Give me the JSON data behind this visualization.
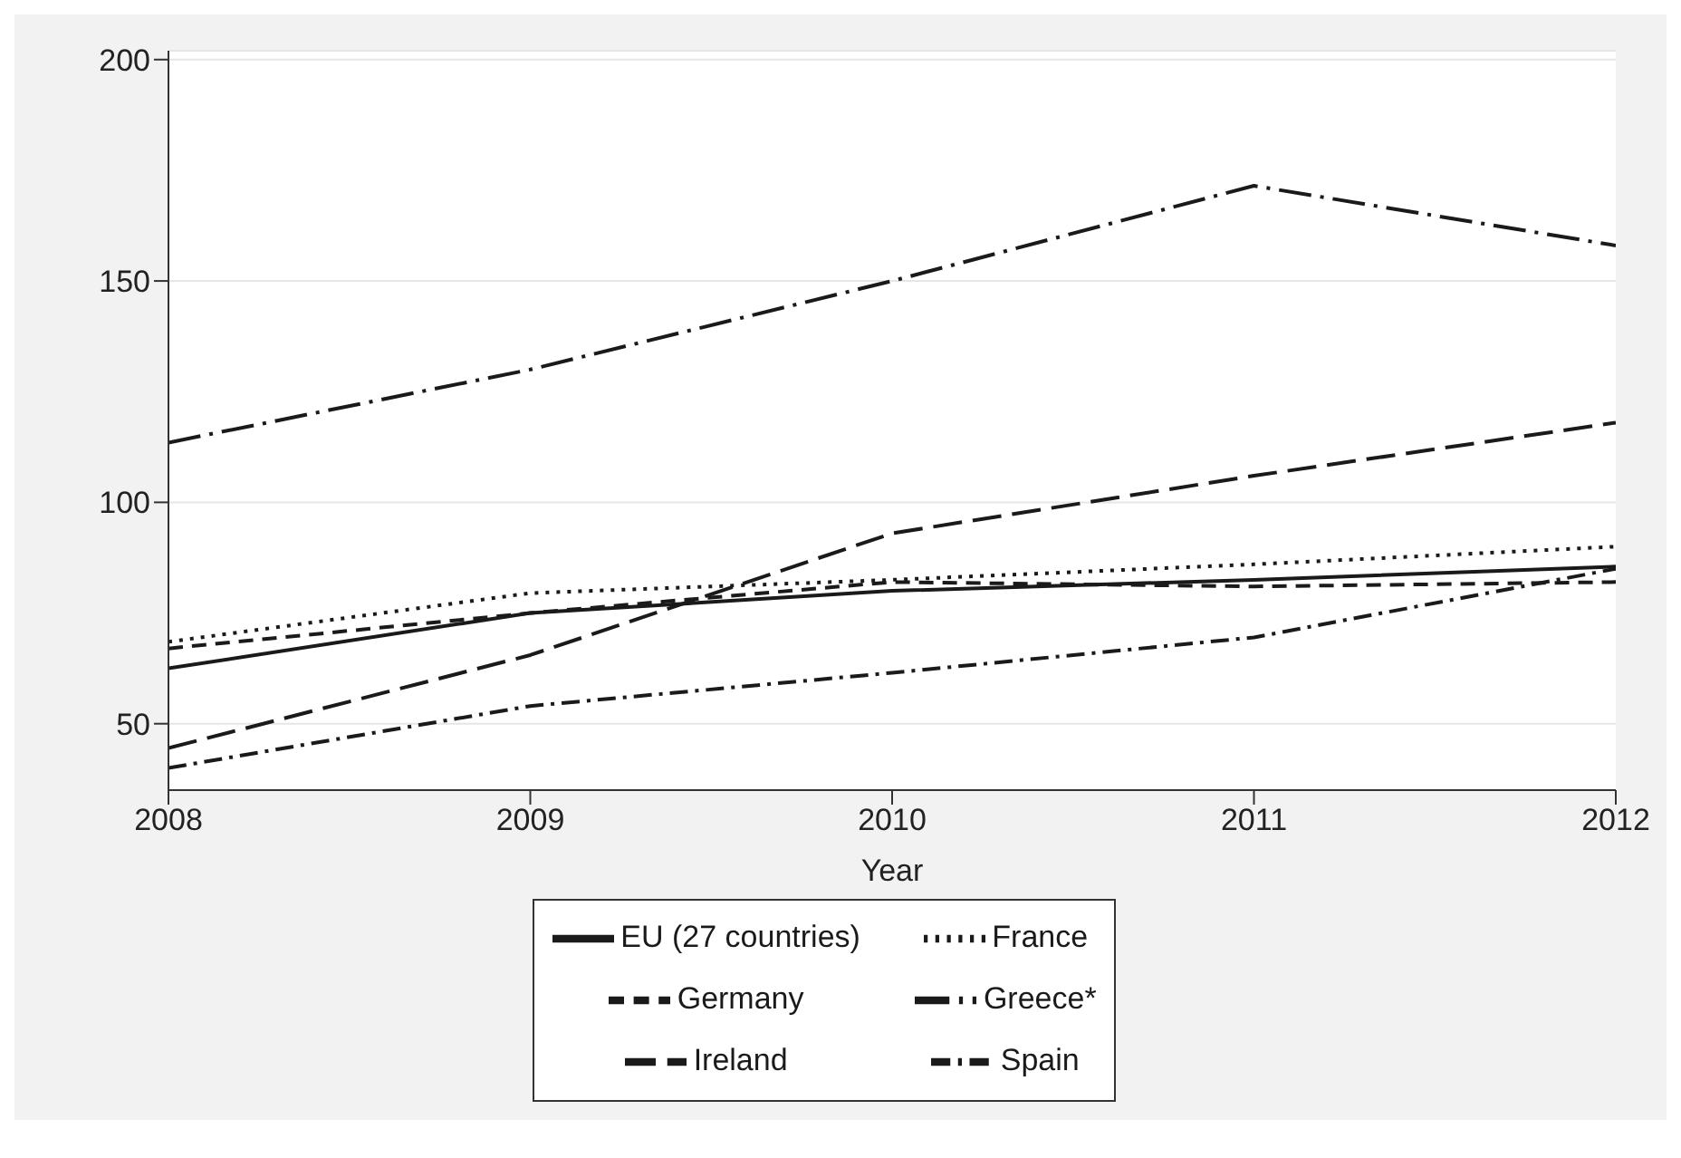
{
  "chart_data": {
    "type": "line",
    "xlabel": "Year",
    "x": [
      2008,
      2009,
      2010,
      2011,
      2012
    ],
    "xlim": [
      2008,
      2012
    ],
    "xticks": [
      2008,
      2009,
      2010,
      2011,
      2012
    ],
    "ylim": [
      35,
      202
    ],
    "yticks": [
      50,
      100,
      150,
      200
    ],
    "grid": "y",
    "legend": "bottom",
    "marker": "none",
    "series": [
      {
        "name": "EU (27 countries)",
        "color": "#1a1a1a",
        "line_style": "solid",
        "values": [
          62.5,
          75,
          80,
          82.5,
          85.5
        ]
      },
      {
        "name": "Germany",
        "color": "#1a1a1a",
        "line_style": "dashed",
        "values": [
          67,
          75,
          82,
          81,
          82
        ]
      },
      {
        "name": "France",
        "color": "#1a1a1a",
        "line_style": "dotted",
        "values": [
          68.5,
          79.5,
          82.5,
          86,
          90
        ]
      },
      {
        "name": "Greece*",
        "color": "#1a1a1a",
        "line_style": "longdashdot",
        "values": [
          113.5,
          130,
          150,
          171.5,
          158
        ]
      },
      {
        "name": "Ireland",
        "color": "#1a1a1a",
        "line_style": "longdash",
        "values": [
          44.5,
          65.5,
          93,
          106,
          118
        ]
      },
      {
        "name": "Spain",
        "color": "#1a1a1a",
        "line_style": "dashdot",
        "values": [
          40,
          54,
          61.5,
          69.5,
          85
        ]
      }
    ]
  }
}
